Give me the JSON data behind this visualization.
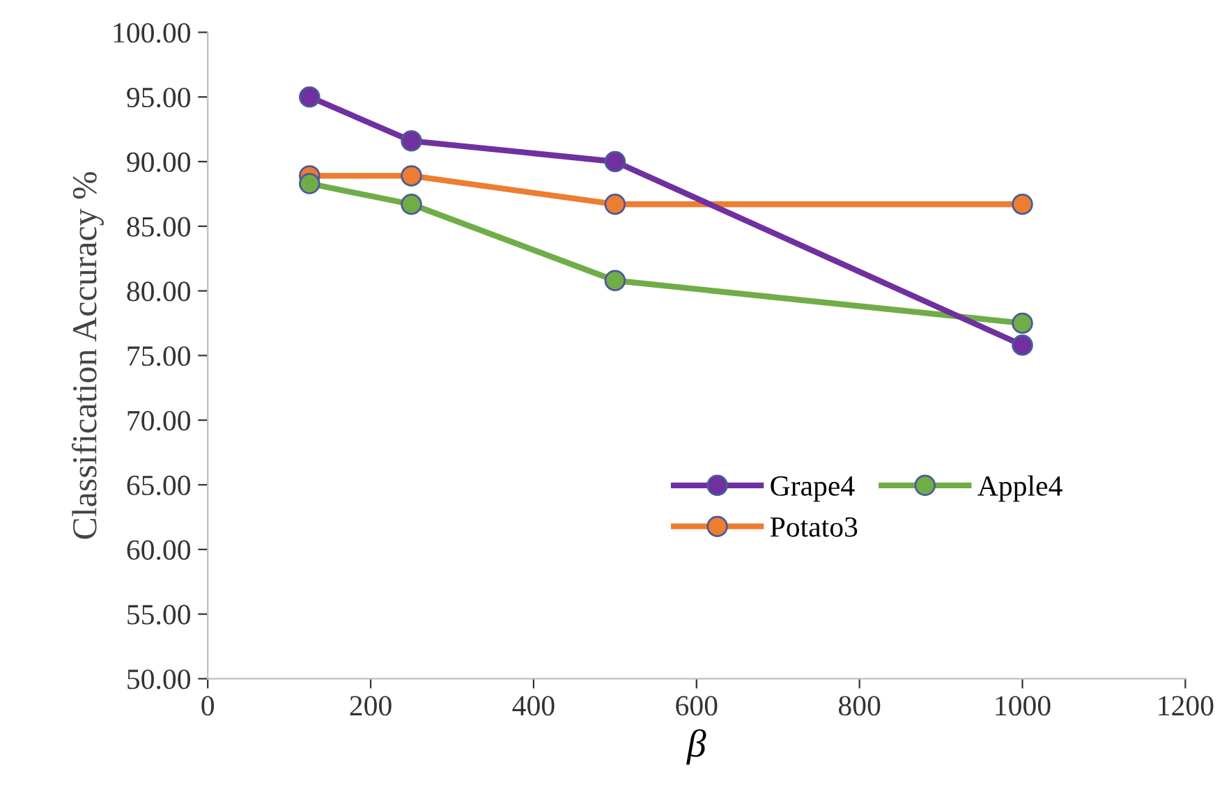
{
  "chart_data": {
    "type": "line",
    "xlabel": "β",
    "ylabel": "Classification Accuracy %",
    "x": [
      125,
      250,
      500,
      1000
    ],
    "series": [
      {
        "name": "Grape4",
        "color": "#7030a0",
        "values": [
          95.0,
          91.6,
          90.0,
          75.8
        ]
      },
      {
        "name": "Apple4",
        "color": "#70ad47",
        "values": [
          88.3,
          86.7,
          80.8,
          77.5
        ]
      },
      {
        "name": "Potato3",
        "color": "#ed7d31",
        "values": [
          88.9,
          88.9,
          86.7,
          86.7
        ]
      }
    ],
    "xlim": [
      0,
      1200
    ],
    "xticks": [
      0,
      200,
      400,
      600,
      800,
      1000,
      1200
    ],
    "ylim": [
      50,
      100
    ],
    "yticks": [
      {
        "value": 50,
        "label": "50.00"
      },
      {
        "value": 55,
        "label": "55.00"
      },
      {
        "value": 60,
        "label": "60.00"
      },
      {
        "value": 65,
        "label": "65.00"
      },
      {
        "value": 70,
        "label": "70.00"
      },
      {
        "value": 75,
        "label": "75.00"
      },
      {
        "value": 80,
        "label": "80.00"
      },
      {
        "value": 85,
        "label": "85.00"
      },
      {
        "value": 90,
        "label": "90.00"
      },
      {
        "value": 95,
        "label": "95.00"
      },
      {
        "value": 100,
        "label": "100.00"
      }
    ],
    "grid": false,
    "legend": "right",
    "marker": "circle",
    "line_style": "solid"
  }
}
